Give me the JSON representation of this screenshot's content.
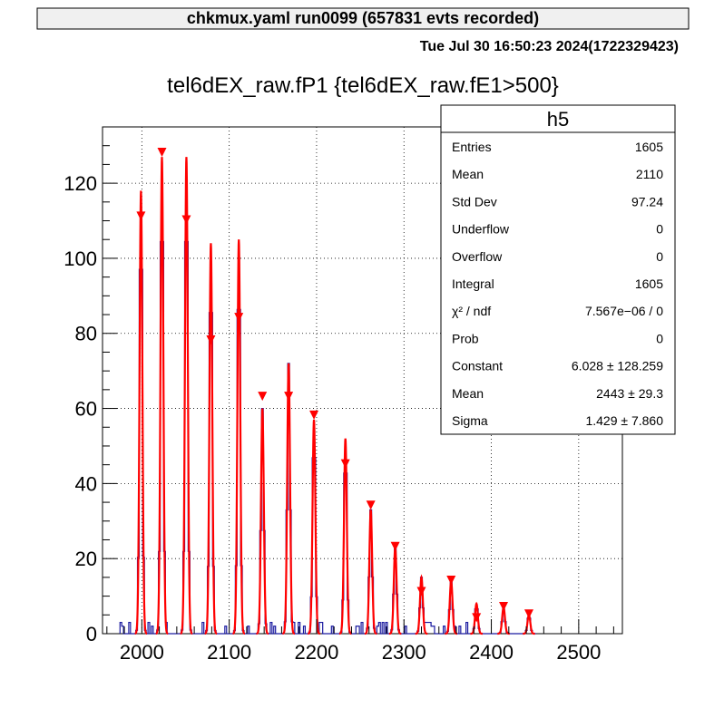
{
  "header": {
    "run_title": "chkmux.yaml  run0099 (657831 evts recorded)",
    "timestamp": "Tue Jul 30 16:50:23 2024(1722329423)"
  },
  "chart_data": {
    "type": "histogram",
    "title": "tel6dEX_raw.fP1 {tel6dEX_raw.fE1>500}",
    "xlabel": "",
    "ylabel": "",
    "xlim": [
      1955,
      2550
    ],
    "ylim": [
      0,
      135
    ],
    "x_ticks": [
      2000,
      2100,
      2200,
      2300,
      2400,
      2500
    ],
    "y_ticks": [
      0,
      20,
      40,
      60,
      80,
      100,
      120
    ],
    "x_tick_labels": [
      "2000",
      "2100",
      "2200",
      "2300",
      "2400",
      "2500"
    ],
    "y_tick_labels": [
      "0",
      "20",
      "40",
      "60",
      "80",
      "100",
      "120"
    ],
    "grid": true,
    "histogram_color": "#1a1aa0",
    "fit_color": "#ff0000",
    "peaks": [
      {
        "x": 1999,
        "height": 118
      },
      {
        "x": 2023,
        "height": 127
      },
      {
        "x": 2051,
        "height": 127
      },
      {
        "x": 2079,
        "height": 104
      },
      {
        "x": 2111,
        "height": 105
      },
      {
        "x": 2138,
        "height": 60
      },
      {
        "x": 2168,
        "height": 72
      },
      {
        "x": 2197,
        "height": 57
      },
      {
        "x": 2233,
        "height": 52
      },
      {
        "x": 2262,
        "height": 33
      },
      {
        "x": 2290,
        "height": 23
      },
      {
        "x": 2320,
        "height": 15
      },
      {
        "x": 2354,
        "height": 14
      },
      {
        "x": 2383,
        "height": 8
      },
      {
        "x": 2414,
        "height": 7
      },
      {
        "x": 2443,
        "height": 5
      }
    ],
    "markers": [
      {
        "x": 1999,
        "y": 111
      },
      {
        "x": 2023,
        "y": 128
      },
      {
        "x": 2051,
        "y": 110
      },
      {
        "x": 2079,
        "y": 78
      },
      {
        "x": 2111,
        "y": 84
      },
      {
        "x": 2138,
        "y": 63
      },
      {
        "x": 2168,
        "y": 63
      },
      {
        "x": 2197,
        "y": 58
      },
      {
        "x": 2233,
        "y": 45
      },
      {
        "x": 2262,
        "y": 34
      },
      {
        "x": 2290,
        "y": 23
      },
      {
        "x": 2320,
        "y": 11
      },
      {
        "x": 2354,
        "y": 14
      },
      {
        "x": 2383,
        "y": 4
      },
      {
        "x": 2414,
        "y": 7
      },
      {
        "x": 2443,
        "y": 5
      }
    ]
  },
  "stats": {
    "name": "h5",
    "rows": [
      {
        "label": "Entries",
        "value": "1605"
      },
      {
        "label": "Mean",
        "value": "2110"
      },
      {
        "label": "Std Dev",
        "value": "97.24"
      },
      {
        "label": "Underflow",
        "value": "0"
      },
      {
        "label": "Overflow",
        "value": "0"
      },
      {
        "label": "Integral",
        "value": "1605"
      },
      {
        "label": "χ² / ndf",
        "value": "7.567e−06 / 0"
      },
      {
        "label": "Prob",
        "value": "0"
      },
      {
        "label": "Constant",
        "value": "6.028   ± 128.259"
      },
      {
        "label": "Mean",
        "value": "2443   ± 29.3"
      },
      {
        "label": "Sigma",
        "value": "1.429   ± 7.860"
      }
    ]
  }
}
